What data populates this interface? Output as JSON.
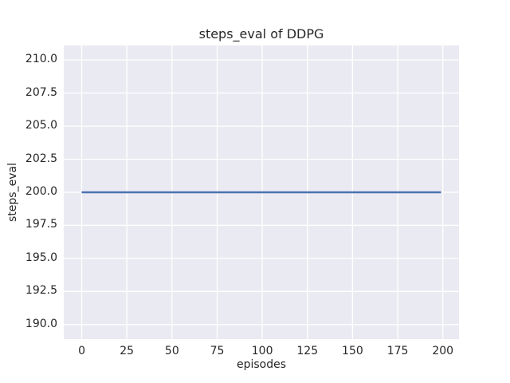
{
  "chart_data": {
    "type": "line",
    "title": "steps_eval of DDPG",
    "xlabel": "episodes",
    "ylabel": "steps_eval",
    "series": [
      {
        "name": "steps_eval",
        "color": "#4c72b0",
        "linewidth": 2.5,
        "points": [
          [
            0,
            200
          ],
          [
            199,
            200
          ]
        ],
        "note": "constant value 200 for every episode 0-199"
      }
    ],
    "xlim": [
      -9.95,
      208.95
    ],
    "ylim": [
      188.9,
      211.1
    ],
    "xticks": [
      0,
      25,
      50,
      75,
      100,
      125,
      150,
      175,
      200
    ],
    "xtick_labels": [
      "0",
      "25",
      "50",
      "75",
      "100",
      "125",
      "150",
      "175",
      "200"
    ],
    "yticks": [
      210.0,
      207.5,
      205.0,
      202.5,
      200.0,
      197.5,
      195.0,
      192.5,
      190.0
    ],
    "ytick_labels": [
      "210.0",
      "207.5",
      "205.0",
      "202.5",
      "200.0",
      "197.5",
      "195.0",
      "192.5",
      "190.0"
    ],
    "grid": true,
    "legend_position": "none",
    "colors": {
      "plot_background": "#eaeaf2",
      "grid_line": "#ffffff",
      "text": "#262626",
      "figure_background": "#ffffff"
    }
  }
}
